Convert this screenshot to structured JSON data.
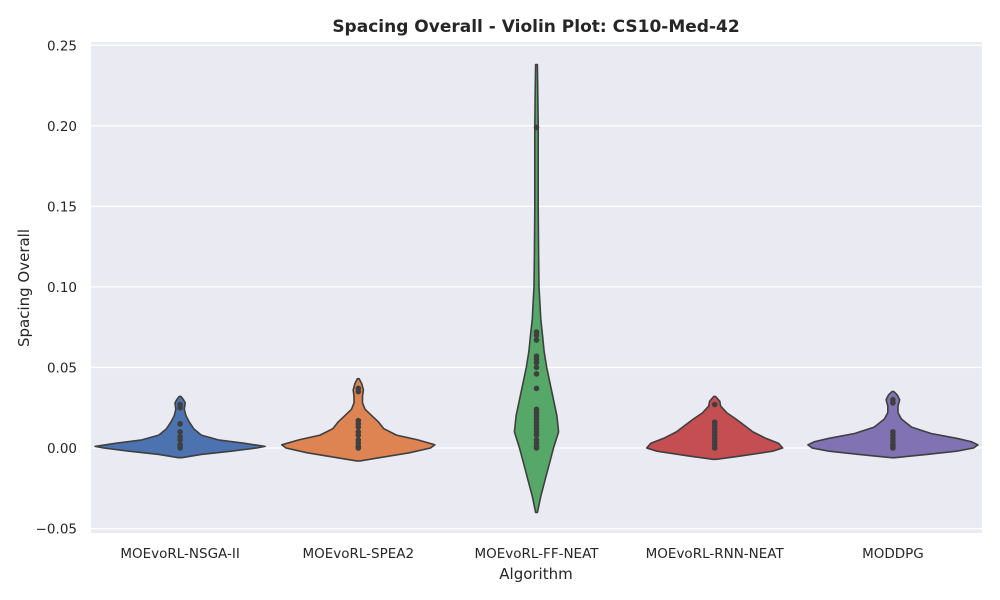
{
  "chart_data": {
    "type": "violin",
    "title": "Spacing Overall - Violin Plot: CS10-Med-42",
    "xlabel": "Algorithm",
    "ylabel": "Spacing Overall",
    "ylim": [
      -0.052,
      0.253
    ],
    "yticks": [
      -0.05,
      0.0,
      0.05,
      0.1,
      0.15,
      0.2,
      0.25
    ],
    "ytick_labels": [
      "−0.05",
      "0.00",
      "0.05",
      "0.10",
      "0.15",
      "0.20",
      "0.25"
    ],
    "grid": true,
    "categories": [
      "MOEvoRL-NSGA-II",
      "MOEvoRL-SPEA2",
      "MOEvoRL-FF-NEAT",
      "MOEvoRL-RNN-NEAT",
      "MODDPG"
    ],
    "colors": [
      "#4c72b0",
      "#dd8452",
      "#55a868",
      "#c44e52",
      "#8172b3"
    ],
    "background": "#eaeaf2",
    "series": [
      {
        "category": "MOEvoRL-NSGA-II",
        "points": [
          0.0,
          0.001,
          0.002,
          0.005,
          0.007,
          0.01,
          0.015,
          0.025,
          0.027
        ],
        "density": [
          [
            -0.006,
            0.02
          ],
          [
            -0.004,
            0.25
          ],
          [
            -0.002,
            0.6
          ],
          [
            0.0,
            0.9
          ],
          [
            0.001,
            1.0
          ],
          [
            0.003,
            0.75
          ],
          [
            0.005,
            0.45
          ],
          [
            0.008,
            0.25
          ],
          [
            0.012,
            0.16
          ],
          [
            0.016,
            0.11
          ],
          [
            0.02,
            0.07
          ],
          [
            0.024,
            0.05
          ],
          [
            0.028,
            0.06
          ],
          [
            0.03,
            0.04
          ],
          [
            0.032,
            0.01
          ]
        ]
      },
      {
        "category": "MOEvoRL-SPEA2",
        "points": [
          0.0,
          0.001,
          0.003,
          0.005,
          0.008,
          0.01,
          0.013,
          0.015,
          0.017,
          0.035,
          0.037
        ],
        "density": [
          [
            -0.008,
            0.02
          ],
          [
            -0.006,
            0.25
          ],
          [
            -0.003,
            0.6
          ],
          [
            0.0,
            0.85
          ],
          [
            0.002,
            0.9
          ],
          [
            0.005,
            0.7
          ],
          [
            0.008,
            0.45
          ],
          [
            0.012,
            0.3
          ],
          [
            0.016,
            0.24
          ],
          [
            0.02,
            0.16
          ],
          [
            0.024,
            0.08
          ],
          [
            0.028,
            0.05
          ],
          [
            0.032,
            0.05
          ],
          [
            0.036,
            0.06
          ],
          [
            0.04,
            0.04
          ],
          [
            0.043,
            0.01
          ]
        ]
      },
      {
        "category": "MOEvoRL-FF-NEAT",
        "points": [
          0.0,
          0.001,
          0.003,
          0.005,
          0.008,
          0.01,
          0.012,
          0.014,
          0.016,
          0.018,
          0.02,
          0.022,
          0.024,
          0.037,
          0.046,
          0.05,
          0.053,
          0.055,
          0.057,
          0.067,
          0.07,
          0.072,
          0.199
        ],
        "density": [
          [
            -0.04,
            0.01
          ],
          [
            -0.03,
            0.05
          ],
          [
            -0.02,
            0.1
          ],
          [
            -0.01,
            0.15
          ],
          [
            0.0,
            0.2
          ],
          [
            0.01,
            0.26
          ],
          [
            0.02,
            0.24
          ],
          [
            0.03,
            0.2
          ],
          [
            0.04,
            0.16
          ],
          [
            0.05,
            0.12
          ],
          [
            0.06,
            0.09
          ],
          [
            0.07,
            0.07
          ],
          [
            0.08,
            0.05
          ],
          [
            0.09,
            0.04
          ],
          [
            0.1,
            0.03
          ],
          [
            0.12,
            0.025
          ],
          [
            0.15,
            0.02
          ],
          [
            0.2,
            0.02
          ],
          [
            0.22,
            0.015
          ],
          [
            0.238,
            0.01
          ]
        ]
      },
      {
        "category": "MOEvoRL-RNN-NEAT",
        "points": [
          0.0,
          0.002,
          0.004,
          0.006,
          0.008,
          0.01,
          0.012,
          0.014,
          0.016,
          0.027
        ],
        "density": [
          [
            -0.007,
            0.02
          ],
          [
            -0.005,
            0.3
          ],
          [
            -0.002,
            0.68
          ],
          [
            0.0,
            0.8
          ],
          [
            0.003,
            0.75
          ],
          [
            0.006,
            0.6
          ],
          [
            0.01,
            0.45
          ],
          [
            0.014,
            0.35
          ],
          [
            0.018,
            0.25
          ],
          [
            0.022,
            0.14
          ],
          [
            0.026,
            0.07
          ],
          [
            0.029,
            0.06
          ],
          [
            0.032,
            0.01
          ]
        ]
      },
      {
        "category": "MODDPG",
        "points": [
          0.0,
          0.001,
          0.002,
          0.004,
          0.006,
          0.008,
          0.01,
          0.028,
          0.03
        ],
        "density": [
          [
            -0.006,
            0.02
          ],
          [
            -0.004,
            0.4
          ],
          [
            -0.002,
            0.75
          ],
          [
            0.0,
            0.95
          ],
          [
            0.002,
            1.0
          ],
          [
            0.004,
            0.92
          ],
          [
            0.006,
            0.75
          ],
          [
            0.009,
            0.45
          ],
          [
            0.013,
            0.22
          ],
          [
            0.018,
            0.1
          ],
          [
            0.022,
            0.06
          ],
          [
            0.026,
            0.06
          ],
          [
            0.03,
            0.08
          ],
          [
            0.033,
            0.05
          ],
          [
            0.035,
            0.01
          ]
        ]
      }
    ]
  }
}
